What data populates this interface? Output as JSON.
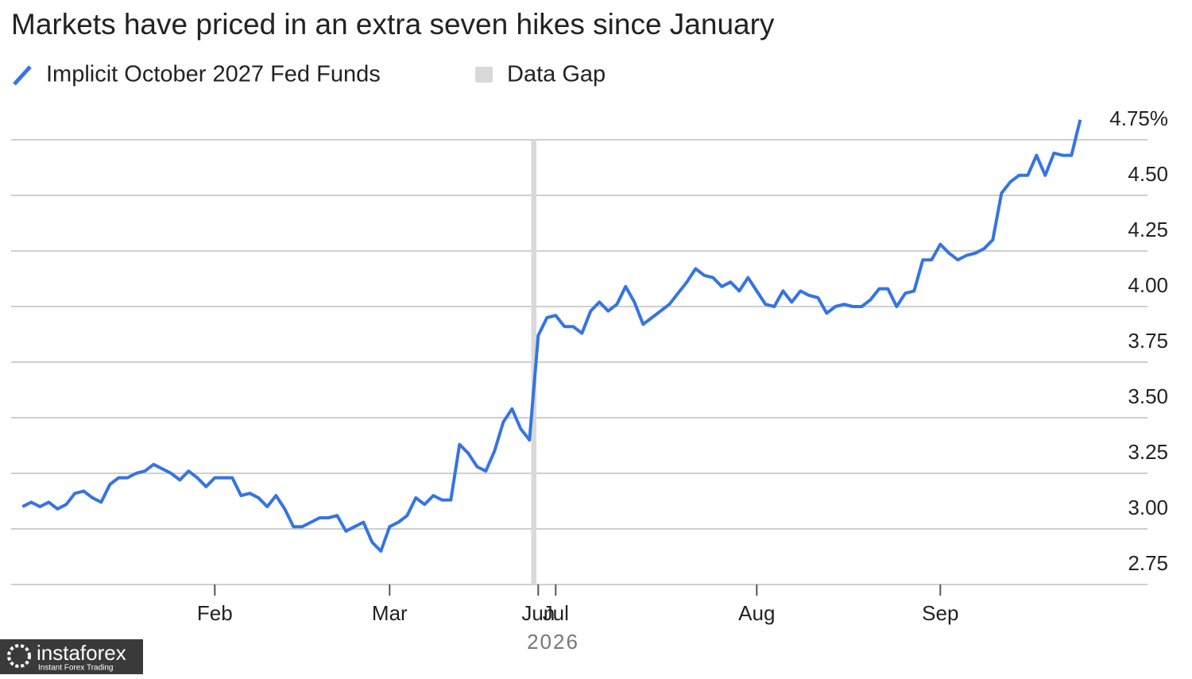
{
  "chart_data": {
    "type": "line",
    "title": "Markets have priced in an extra seven hikes since January",
    "series": [
      {
        "name": "Implicit October 2027 Fed Funds",
        "color": "#3574e3",
        "values": [
          3.1,
          3.12,
          3.1,
          3.12,
          3.09,
          3.11,
          3.16,
          3.17,
          3.14,
          3.12,
          3.2,
          3.23,
          3.23,
          3.25,
          3.26,
          3.29,
          3.27,
          3.25,
          3.22,
          3.26,
          3.23,
          3.19,
          3.23,
          3.23,
          3.23,
          3.15,
          3.16,
          3.14,
          3.1,
          3.15,
          3.09,
          3.01,
          3.01,
          3.03,
          3.05,
          3.05,
          3.06,
          2.99,
          3.01,
          3.03,
          2.94,
          2.9,
          3.01,
          3.03,
          3.06,
          3.14,
          3.11,
          3.15,
          3.13,
          3.13,
          3.38,
          3.34,
          3.28,
          3.26,
          3.35,
          3.48,
          3.54,
          3.45,
          3.4,
          3.87,
          3.95,
          3.96,
          3.91,
          3.91,
          3.88,
          3.98,
          4.02,
          3.98,
          4.01,
          4.09,
          4.02,
          3.92,
          3.95,
          3.98,
          4.01,
          4.06,
          4.11,
          4.17,
          4.14,
          4.13,
          4.09,
          4.11,
          4.07,
          4.13,
          4.07,
          4.01,
          4.0,
          4.07,
          4.02,
          4.07,
          4.05,
          4.04,
          3.97,
          4.0,
          4.01,
          4.0,
          4.0,
          4.03,
          4.08,
          4.08,
          4.0,
          4.06,
          4.07,
          4.21,
          4.21,
          4.28,
          4.24,
          4.21,
          4.23,
          4.24,
          4.26,
          4.3,
          4.51,
          4.56,
          4.59,
          4.59,
          4.68,
          4.59,
          4.69,
          4.68,
          4.68,
          4.84
        ]
      }
    ],
    "gap_label": "Data Gap",
    "gap": [
      58.2,
      58.8
    ],
    "gap_color": "#d9d9d9",
    "xlim": [
      -1.3,
      128.7
    ],
    "xticks": [
      {
        "value": 22,
        "label": "Feb"
      },
      {
        "value": 42,
        "label": "Mar"
      },
      {
        "value": 59,
        "label": "Jun"
      },
      {
        "value": 61,
        "label": "Jul"
      },
      {
        "value": 84,
        "label": "Aug"
      },
      {
        "value": 105,
        "label": "Sep"
      }
    ],
    "x_axis_year": "2026",
    "ylim": [
      2.75,
      4.85
    ],
    "yticks": [
      2.75,
      {
        "value": 3,
        "label": "3.00"
      },
      3.25,
      {
        "value": 3.5,
        "label": "3.50"
      },
      3.75,
      {
        "value": 4,
        "label": "4.00"
      },
      4.25,
      {
        "value": 4.5,
        "label": "4.50"
      },
      {
        "value": 4.75,
        "label": "4.75%"
      }
    ],
    "grid": true
  },
  "watermark": {
    "brand": "instaforex",
    "tagline": "Instant Forex Trading"
  }
}
